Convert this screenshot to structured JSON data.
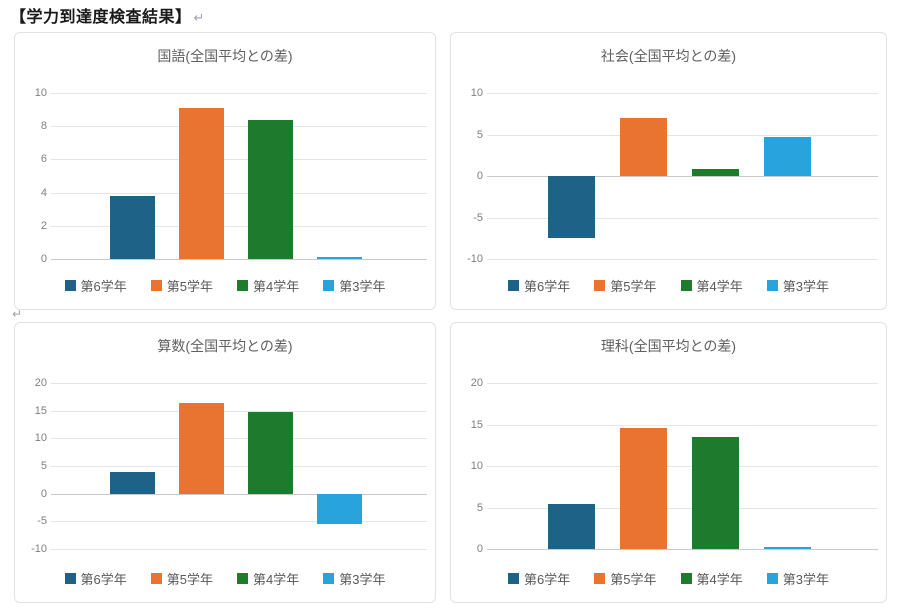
{
  "page": {
    "title": "【学力到達度検査結果】",
    "title_return_mark": "↵",
    "section_return_mark": "↵"
  },
  "palette": {
    "grade-6": "#1e6387",
    "grade-5": "#e97432",
    "grade-4": "#1e7a2d",
    "grade-3": "#29a3dc"
  },
  "legend_items": [
    {
      "label": "第6学年",
      "slug": "grade-6"
    },
    {
      "label": "第5学年",
      "slug": "grade-5"
    },
    {
      "label": "第4学年",
      "slug": "grade-4"
    },
    {
      "label": "第3学年",
      "slug": "grade-3"
    }
  ],
  "chart_data": [
    {
      "type": "bar",
      "title": "国語(全国平均との差)",
      "categories": [
        "第6学年",
        "第5学年",
        "第4学年",
        "第3学年"
      ],
      "values": [
        3.8,
        9.1,
        8.4,
        0.15
      ],
      "ylim": [
        0,
        10
      ],
      "yticks": [
        0,
        2,
        4,
        6,
        8,
        10
      ],
      "grid": true,
      "legend_position": "bottom"
    },
    {
      "type": "bar",
      "title": "社会(全国平均との差)",
      "categories": [
        "第6学年",
        "第5学年",
        "第4学年",
        "第3学年"
      ],
      "values": [
        -7.5,
        7.0,
        0.8,
        4.7
      ],
      "ylim": [
        -10,
        10
      ],
      "yticks": [
        -10,
        -5,
        0,
        5,
        10
      ],
      "grid": true,
      "legend_position": "bottom"
    },
    {
      "type": "bar",
      "title": "算数(全国平均との差)",
      "categories": [
        "第6学年",
        "第5学年",
        "第4学年",
        "第3学年"
      ],
      "values": [
        4.0,
        16.3,
        14.7,
        -5.4
      ],
      "ylim": [
        -10,
        20
      ],
      "yticks": [
        -10,
        -5,
        0,
        5,
        10,
        15,
        20
      ],
      "grid": true,
      "legend_position": "bottom"
    },
    {
      "type": "bar",
      "title": "理科(全国平均との差)",
      "categories": [
        "第6学年",
        "第5学年",
        "第4学年",
        "第3学年"
      ],
      "values": [
        5.4,
        14.6,
        13.5,
        0.2
      ],
      "ylim": [
        0,
        20
      ],
      "yticks": [
        0,
        5,
        10,
        15,
        20
      ],
      "grid": true,
      "legend_position": "bottom"
    }
  ]
}
